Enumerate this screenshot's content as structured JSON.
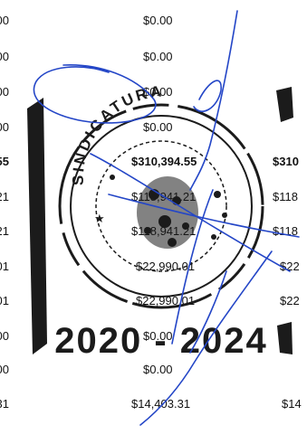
{
  "rows": [
    {
      "left": "00",
      "mid": "$0.00",
      "right": "",
      "bold": false
    },
    {
      "left": "00",
      "mid": "$0.00",
      "right": "",
      "bold": false
    },
    {
      "left": "00",
      "mid": "$0.00",
      "right": "",
      "bold": false
    },
    {
      "left": "00",
      "mid": "$0.00",
      "right": "",
      "bold": false
    },
    {
      "left": "55",
      "mid": "$310,394.55",
      "right": "$310",
      "bold": true
    },
    {
      "left": "21",
      "mid": "$118,941.21",
      "right": "$118",
      "bold": false
    },
    {
      "left": "21",
      "mid": "$118,941.21",
      "right": "$118",
      "bold": false
    },
    {
      "left": "01",
      "mid": "$22,990.01",
      "right": "$22",
      "bold": false
    },
    {
      "left": "01",
      "mid": "$22,990.01",
      "right": "$22",
      "bold": false
    },
    {
      "left": "00",
      "mid": "$0.00",
      "right": "",
      "bold": false
    },
    {
      "left": "00",
      "mid": "$0.00",
      "right": "",
      "bold": false
    },
    {
      "left": "31",
      "mid": "$14,403.31",
      "right": "$14",
      "bold": false
    }
  ],
  "stamp": {
    "arc_text": "SINDICATURA",
    "years": "2020 - 2024"
  },
  "colors": {
    "ink": "#1b1b1b",
    "signature": "#2446c7"
  }
}
